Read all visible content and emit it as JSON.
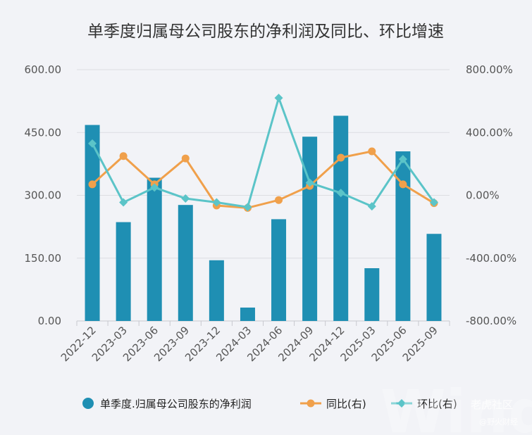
{
  "chart_data": {
    "type": "bar",
    "title": "单季度归属母公司股东的净利润及同比、环比增速",
    "categories": [
      "2022-12",
      "2023-03",
      "2023-06",
      "2023-09",
      "2023-12",
      "2024-03",
      "2024-06",
      "2024-09",
      "2024-12",
      "2025-03",
      "2025-06",
      "2025-09"
    ],
    "left_axis": {
      "ylim": [
        0,
        600
      ],
      "ticks": [
        "0.00",
        "150.00",
        "300.00",
        "450.00",
        "600.00"
      ]
    },
    "right_axis": {
      "ylim": [
        -800,
        800
      ],
      "ticks": [
        "-800.00%",
        "-400.00%",
        "0.00%",
        "400.00%",
        "800.00%"
      ]
    },
    "series": [
      {
        "name": "单季度.归属母公司股东的净利润",
        "kind": "bar",
        "axis": "left",
        "color": "#1f8fb3",
        "values": [
          468,
          236,
          342,
          277,
          145,
          32,
          243,
          440,
          490,
          126,
          405,
          208
        ]
      },
      {
        "name": "同比(右)",
        "kind": "line",
        "axis": "right",
        "color": "#f0a04b",
        "values": [
          70,
          250,
          70,
          235,
          -65,
          -80,
          -30,
          60,
          240,
          280,
          70,
          -50
        ]
      },
      {
        "name": "环比(右)",
        "kind": "line",
        "axis": "right",
        "color": "#5bc4c8",
        "values": [
          330,
          -45,
          50,
          -20,
          -45,
          -75,
          620,
          80,
          15,
          -70,
          230,
          -45
        ]
      }
    ],
    "legend": "bottom",
    "grid": true
  },
  "watermark": {
    "brand": "老虎社区",
    "handle": "@野火财经",
    "big": "Wind"
  }
}
